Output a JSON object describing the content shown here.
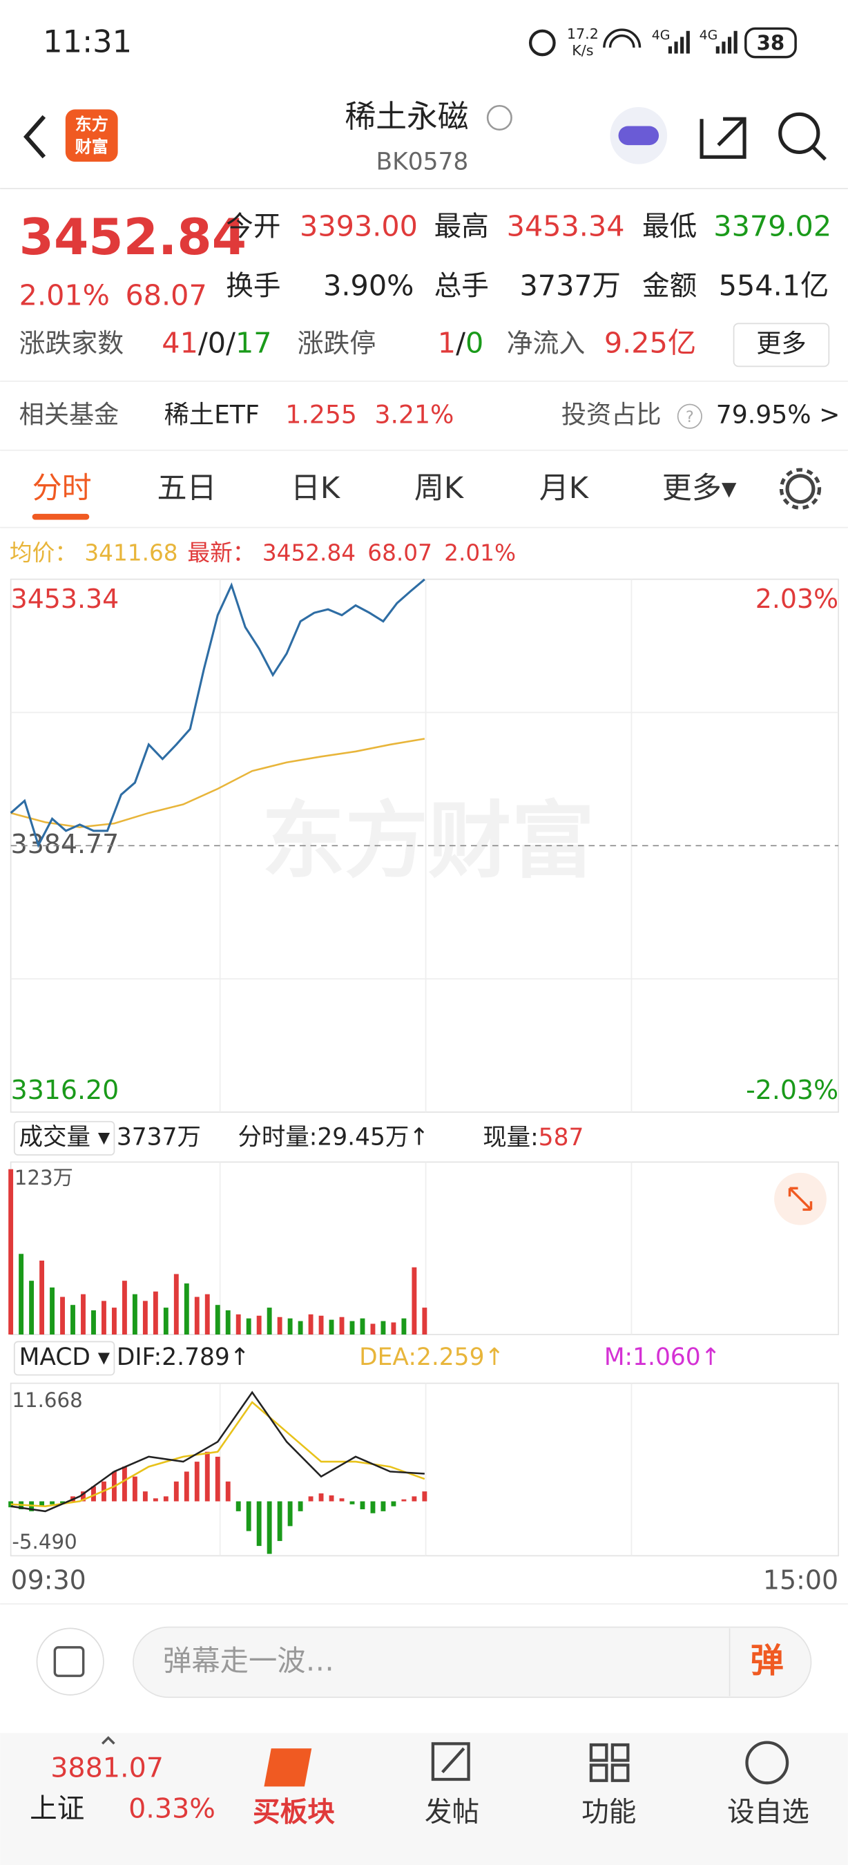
{
  "status": {
    "time": "11:31",
    "speed": "17.2",
    "speed_unit": "K/s",
    "net1": "4G",
    "net2": "4G",
    "battery": "38"
  },
  "header": {
    "logo_top": "东方",
    "logo_bottom": "财富",
    "title": "稀土永磁",
    "code": "BK0578"
  },
  "quote": {
    "price": "3452.84",
    "change_pct": "2.01%",
    "change": "68.07",
    "fields": [
      {
        "label": "今开",
        "value": "3393.00"
      },
      {
        "label": "最高",
        "value": "3453.34"
      },
      {
        "label": "最低",
        "value": "3379.02"
      },
      {
        "label": "换手",
        "value": "3.90%"
      },
      {
        "label": "总手",
        "value": "3737万"
      },
      {
        "label": "金额",
        "value": "554.1亿"
      }
    ],
    "breadth_label": "涨跌家数",
    "breadth_up": "41",
    "breadth_sep1": "/",
    "breadth_flat": "0",
    "breadth_sep2": "/",
    "breadth_down": "17",
    "limit_label": "涨跌停",
    "limit_up": "1",
    "limit_sep": "/",
    "limit_down": "0",
    "inflow_label": "净流入",
    "inflow": "9.25亿",
    "more": "更多"
  },
  "fund": {
    "label": "相关基金",
    "name": "稀土ETF",
    "price": "1.255",
    "pct": "3.21%",
    "ratio_label": "投资占比",
    "help": "?",
    "ratio": "79.95% >"
  },
  "tabs": [
    "分时",
    "五日",
    "日K",
    "周K",
    "月K",
    "更多▾"
  ],
  "info": {
    "avg_label": "均价：",
    "avg": "3411.68",
    "last_label": "最新：",
    "last": "3452.84",
    "change": "68.07",
    "pct": "2.01%"
  },
  "watermark": "东方财富",
  "chart_data": {
    "type": "line",
    "xlim": [
      0,
      240
    ],
    "xticks": [
      {
        "value": 0,
        "label": "09:30"
      },
      {
        "value": 240,
        "label": "15:00"
      }
    ],
    "ylim": [
      3316.2,
      3453.34
    ],
    "yticks": [
      {
        "value": 3453.34,
        "label": "3453.34"
      },
      {
        "value": 3384.77,
        "label": "3384.77"
      },
      {
        "value": 3316.2,
        "label": "3316.20"
      }
    ],
    "right_labels": [
      "2.03%",
      "-2.03%"
    ],
    "price": {
      "color": "#2e6da4",
      "x": [
        0,
        4,
        8,
        12,
        16,
        20,
        24,
        28,
        32,
        36,
        40,
        44,
        48,
        52,
        56,
        60,
        64,
        68,
        72,
        76,
        80,
        84,
        88,
        92,
        96,
        100,
        104,
        108,
        112,
        116,
        120
      ],
      "values": [
        3393.2,
        3396.3,
        3384.9,
        3391.7,
        3388.6,
        3390.2,
        3388.6,
        3388.6,
        3397.9,
        3401.0,
        3410.8,
        3407.1,
        3410.8,
        3414.8,
        3430.2,
        3444.1,
        3451.8,
        3441.0,
        3435.5,
        3428.7,
        3434.2,
        3442.5,
        3444.7,
        3445.6,
        3444.1,
        3446.6,
        3444.7,
        3442.5,
        3447.2,
        3450.3,
        3453.3
      ]
    },
    "average": {
      "color": "#e8b53a",
      "x": [
        0,
        10,
        20,
        30,
        40,
        50,
        60,
        70,
        80,
        90,
        100,
        110,
        120
      ],
      "values": [
        3393.2,
        3390.8,
        3389.5,
        3390.5,
        3393.2,
        3395.4,
        3399.4,
        3404.0,
        3406.2,
        3407.7,
        3409.0,
        3410.8,
        3412.3
      ]
    },
    "volume": {
      "header": "成交量 ▾",
      "total": "3737万",
      "minute": "分时量:29.45万↑",
      "now_label": "现量:",
      "now": "587",
      "ylim": [
        0,
        123
      ],
      "yticks": [
        {
          "value": 123,
          "label": "123万"
        }
      ],
      "x": [
        0,
        3,
        6,
        9,
        12,
        15,
        18,
        21,
        24,
        27,
        30,
        33,
        36,
        39,
        42,
        45,
        48,
        51,
        54,
        57,
        60,
        63,
        66,
        69,
        72,
        75,
        78,
        81,
        84,
        87,
        90,
        93,
        96,
        99,
        102,
        105,
        108,
        111,
        114,
        117,
        120
      ],
      "values": [
        123,
        60,
        40,
        55,
        35,
        28,
        22,
        30,
        18,
        25,
        20,
        40,
        30,
        25,
        32,
        20,
        45,
        38,
        28,
        30,
        22,
        18,
        15,
        12,
        14,
        20,
        13,
        12,
        10,
        15,
        14,
        11,
        13,
        10,
        12,
        8,
        10,
        9,
        12,
        50,
        20
      ],
      "colors": [
        "#e03a3a",
        "#1a9a1a",
        "#1a9a1a",
        "#e03a3a",
        "#1a9a1a",
        "#e03a3a",
        "#1a9a1a",
        "#e03a3a",
        "#1a9a1a",
        "#e03a3a",
        "#e03a3a",
        "#e03a3a",
        "#1a9a1a",
        "#e03a3a",
        "#e03a3a",
        "#1a9a1a",
        "#e03a3a",
        "#1a9a1a",
        "#e03a3a",
        "#e03a3a",
        "#1a9a1a",
        "#1a9a1a",
        "#e03a3a",
        "#1a9a1a",
        "#e03a3a",
        "#1a9a1a",
        "#e03a3a",
        "#1a9a1a",
        "#1a9a1a",
        "#e03a3a",
        "#e03a3a",
        "#1a9a1a",
        "#e03a3a",
        "#1a9a1a",
        "#1a9a1a",
        "#e03a3a",
        "#1a9a1a",
        "#e03a3a",
        "#1a9a1a",
        "#e03a3a",
        "#e03a3a"
      ]
    },
    "macd": {
      "header": "MACD ▾",
      "dif_label": "DIF:2.789↑",
      "dea_label": "DEA:2.259↑",
      "m_label": "M:1.060↑",
      "ylim": [
        -5.49,
        11.668
      ],
      "yticks": [
        {
          "value": 11.668,
          "label": "11.668"
        },
        {
          "value": -5.49,
          "label": "-5.490"
        }
      ],
      "up_color": "#e03a3a",
      "down_color": "#1a9a1a",
      "hist_x": [
        0,
        3,
        6,
        9,
        12,
        15,
        18,
        21,
        24,
        27,
        30,
        33,
        36,
        39,
        42,
        45,
        48,
        51,
        54,
        57,
        60,
        63,
        66,
        69,
        72,
        75,
        78,
        81,
        84,
        87,
        90,
        93,
        96,
        99,
        102,
        105,
        108,
        111,
        114,
        117,
        120
      ],
      "hist": [
        -0.6,
        -0.8,
        -1.0,
        -0.5,
        -0.3,
        -0.2,
        0.5,
        1.0,
        1.5,
        2.0,
        3.0,
        3.5,
        2.5,
        1.0,
        0.3,
        0.5,
        2.0,
        3.0,
        4.0,
        5.0,
        4.5,
        2.0,
        -1.0,
        -3.0,
        -4.5,
        -5.3,
        -4.0,
        -2.5,
        -1.0,
        0.5,
        0.8,
        0.6,
        0.3,
        -0.3,
        -0.8,
        -1.2,
        -1.0,
        -0.5,
        0.2,
        0.5,
        1.0
      ],
      "line_x": [
        0,
        10,
        20,
        30,
        40,
        50,
        60,
        70,
        80,
        90,
        100,
        110,
        120
      ],
      "dif": {
        "color": "#222222",
        "values": [
          -0.5,
          -1.0,
          0.5,
          3.0,
          4.5,
          4.0,
          6.0,
          11.0,
          6.0,
          2.5,
          4.5,
          3.0,
          2.789
        ]
      },
      "dea": {
        "color": "#e8c21a",
        "values": [
          -0.3,
          -0.5,
          0,
          1.5,
          3.5,
          4.5,
          5.0,
          10.0,
          7.0,
          4.0,
          4.0,
          3.5,
          2.259
        ]
      }
    }
  },
  "comment": {
    "placeholder": "弹幕走一波…",
    "danmu": "弹"
  },
  "nav": {
    "index_value": "3881.07",
    "index_name": "上证",
    "index_pct": "0.33%",
    "items": [
      "买板块",
      "发帖",
      "功能",
      "设自选"
    ]
  }
}
